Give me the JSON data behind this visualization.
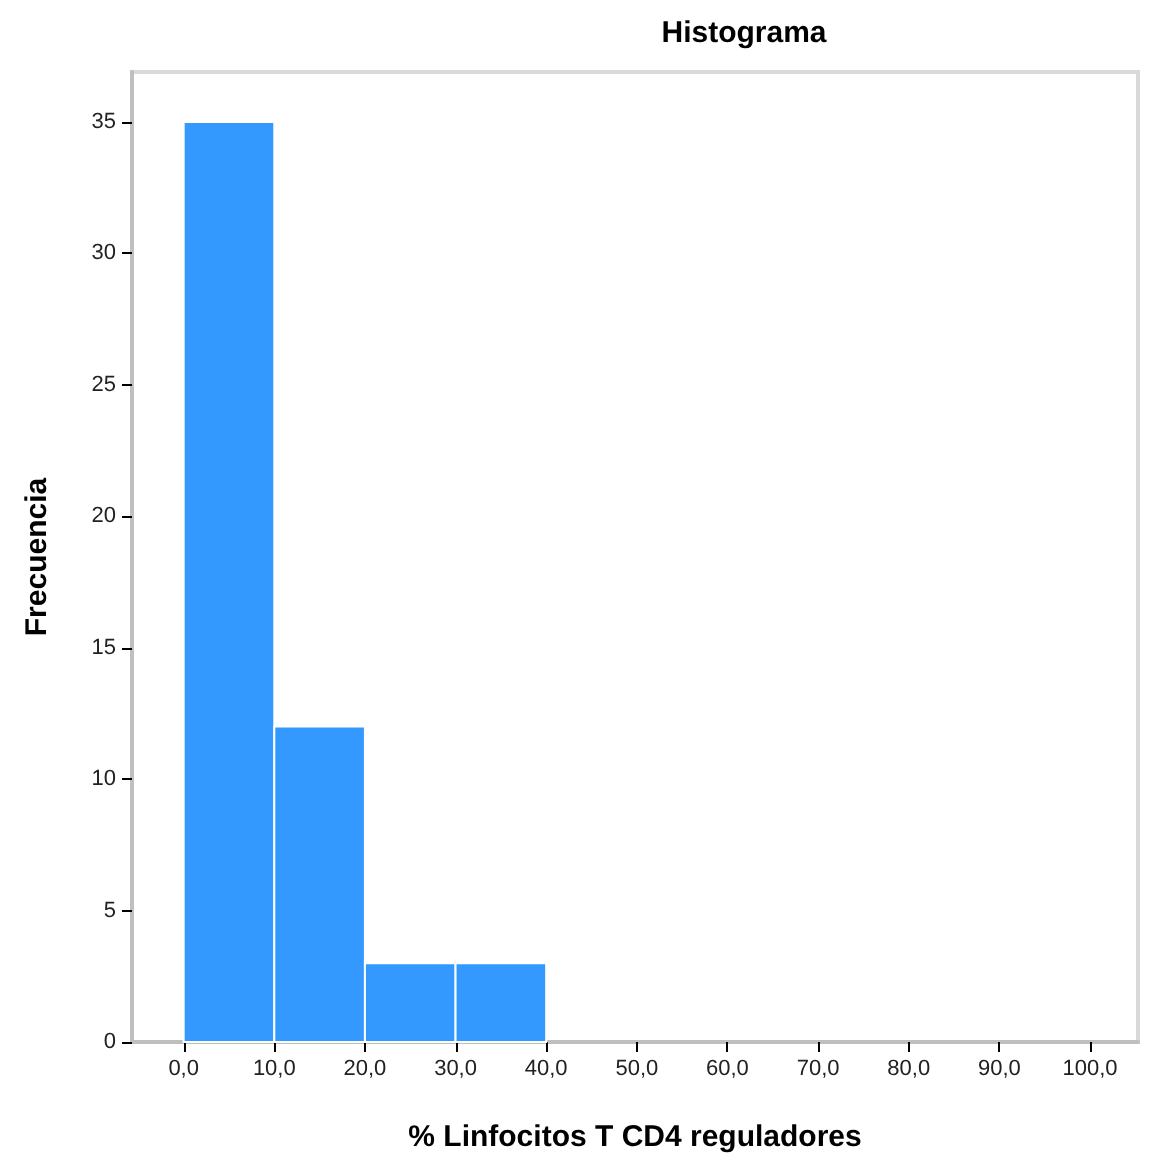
{
  "chart_data": {
    "type": "histogram",
    "title": "Histograma",
    "xlabel": "% Linfocitos T CD4 reguladores",
    "ylabel": "Frecuencia",
    "bins": [
      0,
      10,
      20,
      30,
      40
    ],
    "values": [
      35,
      12,
      3,
      3
    ],
    "color": "#3399ff",
    "xlim": [
      -5.7,
      105.3
    ],
    "xticks": [
      {
        "value": 0,
        "label": "0,0"
      },
      {
        "value": 10,
        "label": "10,0"
      },
      {
        "value": 20,
        "label": "20,0"
      },
      {
        "value": 30,
        "label": "30,0"
      },
      {
        "value": 40,
        "label": "40,0"
      },
      {
        "value": 50,
        "label": "50,0"
      },
      {
        "value": 60,
        "label": "60,0"
      },
      {
        "value": 70,
        "label": "70,0"
      },
      {
        "value": 80,
        "label": "80,0"
      },
      {
        "value": 90,
        "label": "90,0"
      },
      {
        "value": 100,
        "label": "100,0"
      }
    ],
    "ylim": [
      0,
      36.9
    ],
    "yticks": [
      0,
      5,
      10,
      15,
      20,
      25,
      30,
      35
    ]
  }
}
